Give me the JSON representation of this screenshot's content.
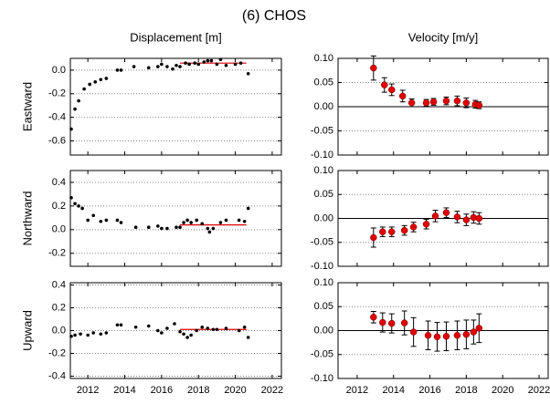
{
  "title": "(6) CHOS",
  "chart_data": [
    {
      "type": "scatter",
      "title": "Displacement [m]",
      "ylabel": "Eastward",
      "color": "#000000",
      "x": [
        2011.1,
        2011.3,
        2011.5,
        2011.8,
        2012.1,
        2012.4,
        2012.7,
        2013.0,
        2013.6,
        2013.8,
        2014.5,
        2015.3,
        2015.8,
        2016.0,
        2016.3,
        2016.6,
        2016.8,
        2017.0,
        2017.3,
        2017.5,
        2017.8,
        2018.0,
        2018.3,
        2018.5,
        2018.7,
        2019.0,
        2019.2,
        2019.5,
        2020.0,
        2020.3,
        2020.7
      ],
      "values": [
        -0.5,
        -0.33,
        -0.26,
        -0.16,
        -0.12,
        -0.1,
        -0.08,
        -0.07,
        0.0,
        0.0,
        0.03,
        0.02,
        0.03,
        0.05,
        0.03,
        0.01,
        0.04,
        0.03,
        0.06,
        0.05,
        0.06,
        0.05,
        0.07,
        0.08,
        0.08,
        0.05,
        0.09,
        0.04,
        0.05,
        0.06,
        -0.03
      ],
      "trend": {
        "x": [
          2017.0,
          2020.6
        ],
        "values": [
          0.06,
          0.06
        ],
        "color": "#e00000"
      },
      "xlim": [
        2011.05,
        2022.5
      ],
      "ylim": [
        -0.72,
        0.1
      ],
      "yticks": [
        {
          "value": 0,
          "label": "0.0"
        },
        -0.2,
        -0.4,
        -0.6
      ],
      "grid": true
    },
    {
      "type": "errorbar",
      "title": "Velocity [m/y]",
      "color": "#e00000",
      "x": [
        2012.9,
        2013.5,
        2013.9,
        2014.5,
        2015.0,
        2015.8,
        2016.2,
        2016.9,
        2017.5,
        2018.0,
        2018.5,
        2018.7
      ],
      "values": [
        0.08,
        0.045,
        0.035,
        0.022,
        0.008,
        0.008,
        0.01,
        0.012,
        0.012,
        0.008,
        0.005,
        0.003
      ],
      "errors": [
        0.025,
        0.015,
        0.012,
        0.012,
        0.008,
        0.007,
        0.007,
        0.008,
        0.01,
        0.01,
        0.008,
        0.007
      ],
      "xlim": [
        2010.95,
        2022.5
      ],
      "ylim": [
        -0.1,
        0.1
      ],
      "yticks": [
        {
          "value": 0.1,
          "label": "0.10"
        },
        {
          "value": 0.05,
          "label": "0.05"
        },
        {
          "value": 0,
          "label": "0.00"
        },
        {
          "value": -0.05,
          "label": "-0.05"
        },
        {
          "value": -0.1,
          "label": "-0.10"
        }
      ],
      "grid": true
    },
    {
      "type": "scatter",
      "ylabel": "Northward",
      "color": "#000000",
      "x": [
        2011.1,
        2011.3,
        2011.5,
        2011.7,
        2012.0,
        2012.3,
        2012.7,
        2013.0,
        2013.6,
        2013.8,
        2014.6,
        2015.3,
        2015.8,
        2016.0,
        2016.3,
        2016.8,
        2017.0,
        2017.2,
        2017.4,
        2017.6,
        2017.9,
        2018.2,
        2018.5,
        2018.6,
        2018.8,
        2019.2,
        2019.5,
        2020.2,
        2020.5,
        2020.7
      ],
      "values": [
        0.27,
        0.22,
        0.2,
        0.18,
        0.08,
        0.12,
        0.07,
        0.08,
        0.08,
        0.06,
        0.02,
        0.02,
        0.03,
        0.01,
        0.01,
        0.02,
        0.02,
        0.06,
        0.08,
        0.06,
        0.08,
        0.05,
        0.01,
        -0.02,
        0.01,
        0.06,
        0.08,
        0.08,
        0.07,
        0.18
      ],
      "trend": {
        "x": [
          2017.0,
          2020.6
        ],
        "values": [
          0.04,
          0.04
        ],
        "color": "#e00000"
      },
      "xlim": [
        2011.05,
        2022.5
      ],
      "ylim": [
        -0.31,
        0.5
      ],
      "yticks": [
        0.4,
        0.2,
        {
          "value": 0,
          "label": "0.0"
        },
        -0.2
      ],
      "grid": true
    },
    {
      "type": "errorbar",
      "color": "#e00000",
      "x": [
        2012.9,
        2013.4,
        2013.9,
        2014.6,
        2015.1,
        2015.8,
        2016.3,
        2016.9,
        2017.5,
        2018.0,
        2018.4,
        2018.7
      ],
      "values": [
        -0.04,
        -0.028,
        -0.028,
        -0.025,
        -0.018,
        -0.012,
        0.005,
        0.012,
        0.003,
        -0.003,
        0.002,
        0.0
      ],
      "errors": [
        0.02,
        0.01,
        0.01,
        0.01,
        0.01,
        0.01,
        0.012,
        0.01,
        0.012,
        0.012,
        0.012,
        0.012
      ],
      "xlim": [
        2010.95,
        2022.5
      ],
      "ylim": [
        -0.1,
        0.1
      ],
      "yticks": [
        {
          "value": 0.1,
          "label": "0.10"
        },
        {
          "value": 0.05,
          "label": "0.05"
        },
        {
          "value": 0,
          "label": "0.00"
        },
        {
          "value": -0.05,
          "label": "-0.05"
        },
        {
          "value": -0.1,
          "label": "-0.10"
        }
      ],
      "grid": true
    },
    {
      "type": "scatter",
      "ylabel": "Upward",
      "color": "#000000",
      "x": [
        2011.1,
        2011.3,
        2011.6,
        2012.0,
        2012.3,
        2012.7,
        2013.0,
        2013.6,
        2013.8,
        2014.6,
        2015.3,
        2015.8,
        2016.0,
        2016.3,
        2016.7,
        2017.0,
        2017.2,
        2017.4,
        2017.6,
        2017.9,
        2018.2,
        2018.5,
        2018.8,
        2019.0,
        2019.5,
        2020.2,
        2020.5,
        2020.7
      ],
      "values": [
        -0.05,
        -0.04,
        -0.03,
        -0.04,
        -0.02,
        -0.03,
        -0.02,
        0.05,
        0.05,
        0.03,
        0.04,
        0.0,
        -0.02,
        0.02,
        0.06,
        -0.01,
        -0.03,
        -0.06,
        -0.04,
        0.0,
        0.03,
        0.02,
        0.01,
        0.01,
        0.02,
        0.0,
        0.03,
        -0.06
      ],
      "trend": {
        "x": [
          2017.0,
          2020.6
        ],
        "values": [
          0.01,
          0.01
        ],
        "color": "#e00000"
      },
      "xlim": [
        2011.05,
        2022.5
      ],
      "ylim": [
        -0.42,
        0.42
      ],
      "xticks": [
        2012,
        2014,
        2016,
        2018,
        2020,
        2022
      ],
      "yticks": [
        0.4,
        0.2,
        {
          "value": 0,
          "label": "0.0"
        },
        -0.2,
        -0.4
      ],
      "grid": true
    },
    {
      "type": "errorbar",
      "color": "#e00000",
      "x": [
        2012.9,
        2013.4,
        2013.9,
        2014.6,
        2015.1,
        2015.9,
        2016.4,
        2016.9,
        2017.5,
        2018.0,
        2018.4,
        2018.7
      ],
      "values": [
        0.028,
        0.017,
        0.015,
        0.016,
        -0.003,
        -0.01,
        -0.013,
        -0.012,
        -0.01,
        -0.008,
        -0.003,
        0.005
      ],
      "errors": [
        0.012,
        0.02,
        0.02,
        0.025,
        0.03,
        0.03,
        0.03,
        0.03,
        0.03,
        0.03,
        0.025,
        0.03
      ],
      "xlim": [
        2010.95,
        2022.5
      ],
      "ylim": [
        -0.1,
        0.1
      ],
      "xticks": [
        2012,
        2014,
        2016,
        2018,
        2020,
        2022
      ],
      "yticks": [
        {
          "value": 0.1,
          "label": "0.10"
        },
        {
          "value": 0.05,
          "label": "0.05"
        },
        {
          "value": 0,
          "label": "0.00"
        },
        {
          "value": -0.05,
          "label": "-0.05"
        },
        {
          "value": -0.1,
          "label": "-0.10"
        }
      ],
      "grid": true
    }
  ]
}
